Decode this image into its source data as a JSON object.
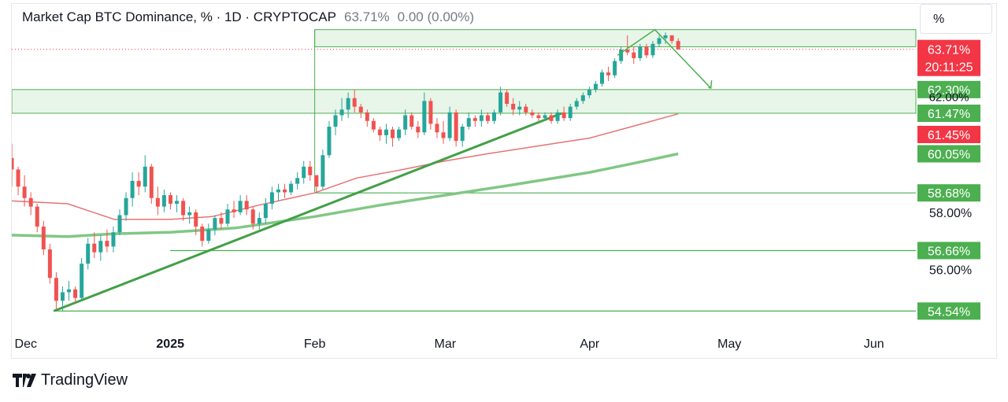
{
  "header": {
    "symbol": "Market Cap BTC Dominance, % · 1D · CRYPTOCAP",
    "last_value": "63.71%",
    "change": "0.00 (0.00%)"
  },
  "scale_button": "%",
  "brand": "TradingView",
  "colors": {
    "up": "#26a69a",
    "down": "#ef5350",
    "zone_fill": "#e8f5e9",
    "level_line": "#4caf50",
    "trendline": "#43a047",
    "ma_fast": "#e57373",
    "ma_slow": "#81c784",
    "last_marker": "#f23645",
    "dotted_last": "#f23645"
  },
  "chart_data": {
    "type": "candlestick",
    "title": "Market Cap BTC Dominance, % · 1D · CRYPTOCAP",
    "x_tick_labels": [
      "Dec",
      "2025",
      "Feb",
      "Mar",
      "Apr",
      "May",
      "Jun"
    ],
    "y_axis_labels": [
      "58.00%",
      "56.00%"
    ],
    "ylim": [
      54.0,
      65.3
    ],
    "x_start": "2024-11-28",
    "x_end": "2025-06-10",
    "last_price": {
      "value": "63.71%",
      "countdown": "20:11:25"
    },
    "level_labels": [
      {
        "text": "62.30%",
        "value": 62.3,
        "kind": "level"
      },
      {
        "text": "62.00%",
        "value": 62.0,
        "kind": "axis_hidden"
      },
      {
        "text": "61.47%",
        "value": 61.47,
        "kind": "level"
      },
      {
        "text": "61.45%",
        "value": 61.45,
        "kind": "ma"
      },
      {
        "text": "60.05%",
        "value": 60.05,
        "kind": "ma"
      },
      {
        "text": "58.68%",
        "value": 58.68,
        "kind": "level"
      },
      {
        "text": "56.66%",
        "value": 56.66,
        "kind": "level"
      },
      {
        "text": "54.54%",
        "value": 54.54,
        "kind": "level"
      }
    ],
    "zones": [
      {
        "from_date": "2025-02-01",
        "to_date": "2025-06-10",
        "top": 64.4,
        "bottom": 63.8
      },
      {
        "from_date": "2024-11-28",
        "to_date": "2025-06-10",
        "top": 62.3,
        "bottom": 61.47
      }
    ],
    "horizontal_lines": [
      {
        "from_date": "2025-02-01",
        "value": 58.68
      },
      {
        "from_date": "2025-01-01",
        "value": 56.66
      },
      {
        "from_date": "2024-12-07",
        "value": 54.54
      }
    ],
    "trendlines": [
      {
        "from": [
          "2024-12-07",
          54.54
        ],
        "to": [
          "2025-03-26",
          61.47
        ]
      }
    ],
    "projection_arrow": [
      [
        "2025-04-07",
        63.5
      ],
      [
        "2025-04-15",
        64.4
      ],
      [
        "2025-04-27",
        62.35
      ]
    ],
    "moving_averages": [
      {
        "name": "MA fast",
        "last": 61.45,
        "points": [
          [
            "2024-11-28",
            58.4
          ],
          [
            "2024-12-10",
            58.3
          ],
          [
            "2024-12-20",
            57.75
          ],
          [
            "2025-01-01",
            57.75
          ],
          [
            "2025-01-10",
            57.85
          ],
          [
            "2025-01-20",
            58.25
          ],
          [
            "2025-02-01",
            58.68
          ],
          [
            "2025-02-10",
            59.2
          ],
          [
            "2025-02-20",
            59.5
          ],
          [
            "2025-03-01",
            59.8
          ],
          [
            "2025-03-10",
            60.05
          ],
          [
            "2025-03-20",
            60.3
          ],
          [
            "2025-04-01",
            60.6
          ],
          [
            "2025-04-10",
            61.0
          ],
          [
            "2025-04-20",
            61.45
          ]
        ]
      },
      {
        "name": "MA slow",
        "last": 60.05,
        "points": [
          [
            "2024-11-28",
            57.2
          ],
          [
            "2024-12-10",
            57.15
          ],
          [
            "2024-12-20",
            57.25
          ],
          [
            "2025-01-01",
            57.3
          ],
          [
            "2025-01-15",
            57.45
          ],
          [
            "2025-02-01",
            57.85
          ],
          [
            "2025-02-15",
            58.25
          ],
          [
            "2025-03-01",
            58.6
          ],
          [
            "2025-03-15",
            58.95
          ],
          [
            "2025-04-01",
            59.4
          ],
          [
            "2025-04-10",
            59.7
          ],
          [
            "2025-04-20",
            60.05
          ]
        ]
      }
    ],
    "candles_ohlc": [
      [
        59.9,
        60.4,
        58.9,
        59.5
      ],
      [
        59.5,
        59.6,
        58.6,
        58.9
      ],
      [
        58.9,
        59.3,
        58.2,
        58.5
      ],
      [
        58.5,
        58.7,
        57.9,
        58.2
      ],
      [
        58.2,
        58.3,
        57.3,
        57.5
      ],
      [
        57.5,
        57.7,
        56.5,
        56.7
      ],
      [
        56.7,
        56.9,
        55.5,
        55.7
      ],
      [
        55.7,
        55.9,
        54.6,
        54.9
      ],
      [
        54.9,
        55.4,
        54.54,
        55.2
      ],
      [
        55.2,
        55.6,
        54.9,
        55.3
      ],
      [
        55.3,
        55.4,
        54.8,
        55.0
      ],
      [
        55.0,
        56.4,
        54.9,
        56.2
      ],
      [
        56.2,
        57.1,
        56.0,
        56.9
      ],
      [
        56.9,
        57.3,
        56.4,
        56.6
      ],
      [
        56.6,
        57.2,
        56.3,
        57.0
      ],
      [
        57.0,
        57.4,
        56.6,
        56.8
      ],
      [
        56.8,
        57.5,
        56.6,
        57.3
      ],
      [
        57.3,
        58.1,
        57.2,
        57.9
      ],
      [
        57.9,
        58.7,
        57.7,
        58.5
      ],
      [
        58.5,
        59.4,
        58.2,
        59.1
      ],
      [
        59.1,
        59.4,
        58.6,
        58.9
      ],
      [
        58.9,
        60.0,
        58.7,
        59.6
      ],
      [
        59.6,
        59.7,
        58.3,
        58.5
      ],
      [
        58.5,
        58.9,
        57.9,
        58.2
      ],
      [
        58.2,
        58.8,
        58.0,
        58.6
      ],
      [
        58.6,
        58.7,
        58.1,
        58.3
      ],
      [
        58.3,
        58.6,
        58.0,
        58.4
      ],
      [
        58.4,
        58.5,
        57.7,
        57.9
      ],
      [
        57.9,
        58.2,
        57.6,
        58.0
      ],
      [
        58.0,
        58.1,
        57.2,
        57.5
      ],
      [
        57.5,
        57.6,
        56.8,
        57.0
      ],
      [
        57.0,
        57.6,
        56.9,
        57.4
      ],
      [
        57.4,
        57.9,
        57.2,
        57.8
      ],
      [
        57.8,
        58.0,
        57.4,
        57.6
      ],
      [
        57.6,
        58.3,
        57.5,
        58.1
      ],
      [
        58.1,
        58.4,
        57.8,
        58.0
      ],
      [
        58.0,
        58.6,
        57.9,
        58.4
      ],
      [
        58.4,
        58.6,
        57.9,
        58.1
      ],
      [
        58.1,
        58.2,
        57.4,
        57.6
      ],
      [
        57.6,
        58.0,
        57.4,
        57.8
      ],
      [
        57.8,
        58.5,
        57.6,
        58.3
      ],
      [
        58.3,
        58.9,
        58.1,
        58.7
      ],
      [
        58.7,
        59.0,
        58.4,
        58.8
      ],
      [
        58.8,
        59.0,
        58.5,
        58.7
      ],
      [
        58.7,
        59.1,
        58.6,
        59.0
      ],
      [
        59.0,
        59.4,
        58.8,
        59.2
      ],
      [
        59.2,
        59.8,
        59.0,
        59.6
      ],
      [
        59.6,
        59.8,
        59.1,
        59.3
      ],
      [
        59.3,
        59.3,
        58.7,
        58.9
      ],
      [
        58.9,
        60.2,
        58.8,
        60.0
      ],
      [
        60.0,
        61.2,
        59.9,
        61.0
      ],
      [
        61.0,
        61.6,
        60.7,
        61.4
      ],
      [
        61.4,
        62.0,
        61.2,
        61.6
      ],
      [
        61.6,
        62.2,
        61.3,
        62.0
      ],
      [
        62.0,
        62.3,
        61.5,
        61.7
      ],
      [
        61.7,
        61.8,
        61.3,
        61.5
      ],
      [
        61.5,
        61.6,
        61.0,
        61.2
      ],
      [
        61.2,
        61.3,
        60.8,
        60.9
      ],
      [
        60.9,
        61.0,
        60.5,
        60.7
      ],
      [
        60.7,
        61.1,
        60.4,
        60.9
      ],
      [
        60.9,
        61.0,
        60.3,
        60.6
      ],
      [
        60.6,
        61.0,
        60.5,
        60.9
      ],
      [
        60.9,
        61.6,
        60.7,
        61.4
      ],
      [
        61.4,
        61.5,
        60.9,
        61.0
      ],
      [
        61.0,
        61.2,
        60.6,
        60.8
      ],
      [
        60.8,
        62.2,
        60.7,
        61.9
      ],
      [
        61.9,
        62.0,
        60.9,
        61.1
      ],
      [
        61.1,
        61.3,
        60.6,
        60.8
      ],
      [
        60.8,
        61.2,
        60.4,
        60.6
      ],
      [
        60.6,
        61.7,
        60.5,
        61.5
      ],
      [
        61.5,
        61.6,
        60.3,
        60.5
      ],
      [
        60.5,
        61.1,
        60.3,
        61.0
      ],
      [
        61.0,
        61.5,
        60.9,
        61.3
      ],
      [
        61.3,
        61.4,
        61.0,
        61.2
      ],
      [
        61.2,
        61.6,
        61.0,
        61.4
      ],
      [
        61.4,
        61.5,
        61.1,
        61.2
      ],
      [
        61.2,
        61.6,
        61.1,
        61.5
      ],
      [
        61.5,
        62.4,
        61.4,
        62.2
      ],
      [
        62.2,
        62.3,
        61.7,
        61.8
      ],
      [
        61.8,
        62.0,
        61.4,
        61.6
      ],
      [
        61.6,
        61.9,
        61.4,
        61.7
      ],
      [
        61.7,
        61.8,
        61.4,
        61.5
      ],
      [
        61.5,
        61.6,
        61.3,
        61.4
      ],
      [
        61.4,
        61.5,
        61.2,
        61.3
      ],
      [
        61.3,
        61.5,
        61.2,
        61.4
      ],
      [
        61.4,
        61.5,
        61.1,
        61.2
      ],
      [
        61.2,
        61.6,
        61.1,
        61.5
      ],
      [
        61.5,
        61.7,
        61.2,
        61.3
      ],
      [
        61.3,
        61.8,
        61.2,
        61.7
      ],
      [
        61.7,
        62.0,
        61.6,
        61.9
      ],
      [
        61.9,
        62.2,
        61.8,
        62.1
      ],
      [
        62.1,
        62.4,
        62.0,
        62.3
      ],
      [
        62.3,
        62.6,
        62.2,
        62.5
      ],
      [
        62.5,
        63.0,
        62.4,
        62.9
      ],
      [
        62.9,
        63.1,
        62.6,
        62.8
      ],
      [
        62.8,
        63.4,
        62.7,
        63.3
      ],
      [
        63.3,
        63.8,
        63.2,
        63.7
      ],
      [
        63.7,
        64.2,
        63.5,
        63.6
      ],
      [
        63.6,
        63.8,
        63.2,
        63.4
      ],
      [
        63.4,
        63.9,
        63.3,
        63.8
      ],
      [
        63.8,
        63.9,
        63.4,
        63.5
      ],
      [
        63.5,
        64.0,
        63.4,
        63.9
      ],
      [
        63.9,
        64.2,
        63.8,
        64.1
      ],
      [
        64.1,
        64.3,
        63.9,
        64.2
      ],
      [
        64.2,
        64.2,
        63.9,
        64.0
      ],
      [
        64.0,
        64.1,
        63.7,
        63.71
      ]
    ]
  }
}
